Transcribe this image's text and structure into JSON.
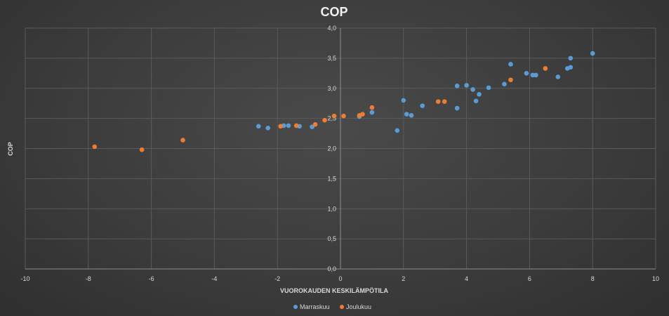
{
  "chart_data": {
    "type": "scatter",
    "title": "COP",
    "xlabel": "VUOROKAUDEN KESKILÄMPÖTILA",
    "ylabel": "COP",
    "xlim": [
      -10,
      10
    ],
    "ylim": [
      0,
      4
    ],
    "x_ticks": [
      "-10",
      "-8",
      "-6",
      "-4",
      "-2",
      "0",
      "2",
      "4",
      "6",
      "8",
      "10"
    ],
    "y_ticks": [
      "0,0",
      "0,5",
      "1,0",
      "1,5",
      "2,0",
      "2,5",
      "3,0",
      "3,5",
      "4,0"
    ],
    "legend_position": "bottom",
    "series": [
      {
        "name": "Marraskuu",
        "color": "#5b9bd5",
        "points": [
          [
            -2.6,
            2.37
          ],
          [
            -2.3,
            2.34
          ],
          [
            -1.8,
            2.38
          ],
          [
            -1.65,
            2.38
          ],
          [
            -1.3,
            2.37
          ],
          [
            -0.9,
            2.36
          ],
          [
            0.6,
            2.53
          ],
          [
            1.0,
            2.6
          ],
          [
            1.8,
            2.3
          ],
          [
            2.0,
            2.8
          ],
          [
            2.1,
            2.57
          ],
          [
            2.25,
            2.55
          ],
          [
            2.6,
            2.71
          ],
          [
            3.7,
            3.04
          ],
          [
            3.7,
            2.67
          ],
          [
            4.0,
            3.05
          ],
          [
            4.2,
            2.98
          ],
          [
            4.3,
            2.79
          ],
          [
            4.4,
            2.9
          ],
          [
            4.7,
            3.01
          ],
          [
            5.2,
            3.07
          ],
          [
            5.4,
            3.4
          ],
          [
            5.9,
            3.25
          ],
          [
            6.1,
            3.22
          ],
          [
            6.2,
            3.22
          ],
          [
            6.9,
            3.19
          ],
          [
            7.2,
            3.33
          ],
          [
            7.3,
            3.35
          ],
          [
            7.3,
            3.5
          ],
          [
            8.0,
            3.58
          ]
        ]
      },
      {
        "name": "Joulukuu",
        "color": "#ed7d31",
        "points": [
          [
            -7.8,
            2.03
          ],
          [
            -6.3,
            1.98
          ],
          [
            -5.0,
            2.14
          ],
          [
            -1.9,
            2.37
          ],
          [
            -1.4,
            2.38
          ],
          [
            -0.8,
            2.4
          ],
          [
            -0.5,
            2.47
          ],
          [
            -0.2,
            2.54
          ],
          [
            0.1,
            2.54
          ],
          [
            0.6,
            2.55
          ],
          [
            0.7,
            2.57
          ],
          [
            1.0,
            2.68
          ],
          [
            3.1,
            2.78
          ],
          [
            3.3,
            2.78
          ],
          [
            5.4,
            3.14
          ],
          [
            6.5,
            3.33
          ]
        ]
      }
    ]
  }
}
